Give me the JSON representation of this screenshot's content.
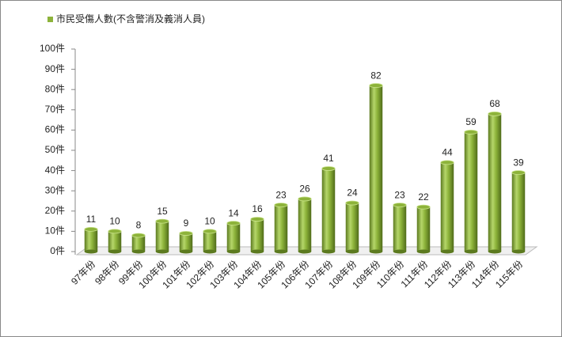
{
  "chart_data": {
    "type": "bar",
    "legend": "top-left",
    "series": [
      {
        "name": "市民受傷人數(不含警消及義消人員)",
        "color": "#8db33a",
        "values": [
          11,
          10,
          8,
          15,
          9,
          10,
          14,
          16,
          23,
          26,
          41,
          24,
          82,
          23,
          22,
          44,
          59,
          68,
          39
        ]
      }
    ],
    "categories": [
      "97年份",
      "98年份",
      "99年份",
      "100年份",
      "101年份",
      "102年份",
      "103年份",
      "104年份",
      "105年份",
      "106年份",
      "107年份",
      "108年份",
      "109年份",
      "110年份",
      "111年份",
      "112年份",
      "113年份",
      "114年份",
      "115年份"
    ],
    "ylim": [
      0,
      100
    ],
    "yticks": [
      {
        "value": 0,
        "label": "0件"
      },
      {
        "value": 10,
        "label": "10件"
      },
      {
        "value": 20,
        "label": "20件"
      },
      {
        "value": 30,
        "label": "30件"
      },
      {
        "value": 40,
        "label": "40件"
      },
      {
        "value": 50,
        "label": "50件"
      },
      {
        "value": 60,
        "label": "60件"
      },
      {
        "value": 70,
        "label": "70件"
      },
      {
        "value": 80,
        "label": "80件"
      },
      {
        "value": 90,
        "label": "90件"
      },
      {
        "value": 100,
        "label": "100件"
      }
    ]
  }
}
